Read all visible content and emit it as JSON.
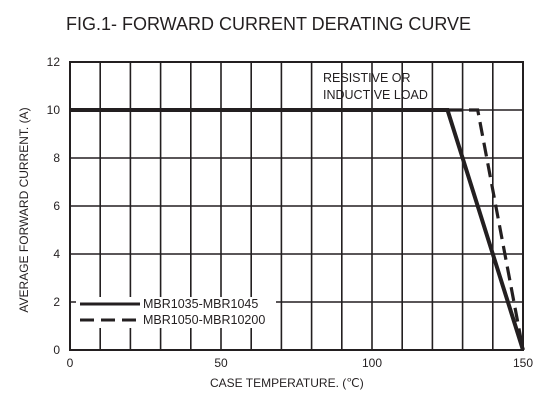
{
  "chart_data": {
    "type": "line",
    "title": "FIG.1- FORWARD CURRENT DERATING CURVE",
    "xlabel": "CASE  TEMPERATURE. (℃)",
    "ylabel": "AVERAGE FORWARD CURRENT. (A)",
    "xlim": [
      0,
      150
    ],
    "ylim": [
      0,
      12
    ],
    "x_ticks": [
      0,
      50,
      100,
      150
    ],
    "x_tick_labels": [
      "0",
      "50",
      "100",
      "150"
    ],
    "y_ticks": [
      0,
      2,
      4,
      6,
      8,
      10,
      12
    ],
    "y_tick_labels": [
      "0",
      "2",
      "4",
      "6",
      "8",
      "10",
      "12"
    ],
    "x_grid_step": 10,
    "y_grid_step": 2,
    "grid": true,
    "annotation": [
      "RESISTIVE OR",
      "INDUCTIVE LOAD"
    ],
    "legend_position": "bottom-left",
    "series": [
      {
        "name": "MBR1035-MBR1045",
        "style": "solid",
        "color": "#231f20",
        "points": [
          [
            0,
            10
          ],
          [
            125,
            10
          ],
          [
            150,
            0
          ]
        ]
      },
      {
        "name": "MBR1050-MBR10200",
        "style": "dashed",
        "color": "#231f20",
        "points": [
          [
            0,
            10
          ],
          [
            135,
            10
          ],
          [
            150,
            0
          ]
        ]
      }
    ]
  }
}
